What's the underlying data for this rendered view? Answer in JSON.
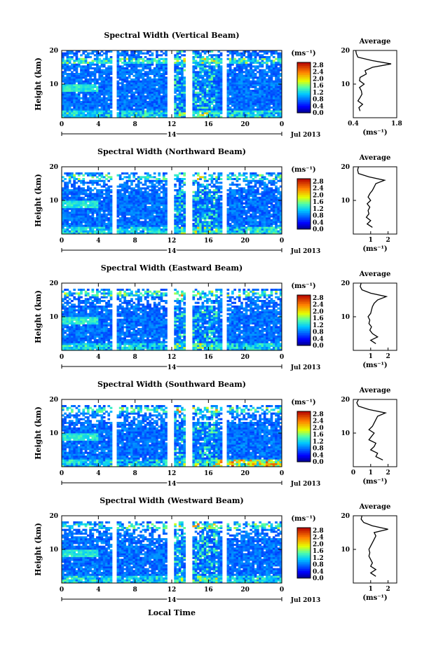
{
  "figure": {
    "xlabel_bottom": "Local Time",
    "date_label": "Jul 2013",
    "day_label": "14"
  },
  "chart_data": [
    {
      "type": "heatmap",
      "title": "Spectral Width (Vertical Beam)",
      "ylabel": "Height (km)",
      "xlabel": "Local Time",
      "x_ticks": [
        "0",
        "4",
        "8",
        "12",
        "16",
        "20",
        "0"
      ],
      "y_ticks": [
        "20",
        "10"
      ],
      "xlim": [
        0,
        24
      ],
      "ylim": [
        0,
        20
      ],
      "colorbar": {
        "unit": "(ms⁻¹)",
        "ticks": [
          "2.8",
          "2.4",
          "2.0",
          "1.6",
          "1.2",
          "0.8",
          "0.4",
          "0.0"
        ],
        "range": [
          0,
          2.8
        ]
      },
      "profile": {
        "title": "Average",
        "xlabel": "(ms⁻¹)",
        "xticks": [
          "0.4",
          "1.8"
        ],
        "xlim": [
          0.4,
          1.8
        ],
        "yticks": [
          "20",
          "10"
        ],
        "heights": [
          2,
          3,
          4,
          5,
          6,
          7,
          8,
          9,
          10,
          11,
          12,
          13,
          14,
          15,
          16,
          17,
          18,
          19,
          20
        ],
        "values": [
          0.62,
          0.58,
          0.7,
          0.55,
          0.62,
          0.68,
          0.66,
          0.6,
          0.75,
          0.6,
          0.62,
          0.82,
          0.78,
          1.02,
          1.62,
          1.0,
          0.55,
          0.5,
          0.48
        ]
      }
    },
    {
      "type": "heatmap",
      "title": "Spectral Width (Northward Beam)",
      "ylabel": "Height (km)",
      "xlabel": "Local Time",
      "x_ticks": [
        "0",
        "4",
        "8",
        "12",
        "16",
        "20",
        "0"
      ],
      "y_ticks": [
        "20",
        "10"
      ],
      "xlim": [
        0,
        24
      ],
      "ylim": [
        0,
        20
      ],
      "colorbar": {
        "unit": "(ms⁻¹)",
        "ticks": [
          "2.8",
          "2.4",
          "2.0",
          "1.6",
          "1.2",
          "0.8",
          "0.4",
          "0.0"
        ],
        "range": [
          0,
          2.8
        ]
      },
      "profile": {
        "title": "Average",
        "xlabel": "(ms⁻¹)",
        "xticks": [
          "1",
          "2"
        ],
        "xlim": [
          0,
          2.5
        ],
        "yticks": [
          "20",
          "10"
        ],
        "heights": [
          2,
          3,
          4,
          5,
          6,
          7,
          8,
          9,
          10,
          11,
          12,
          13,
          14,
          15,
          16,
          17,
          18,
          19,
          20
        ],
        "values": [
          1.1,
          0.8,
          1.0,
          0.75,
          0.9,
          0.85,
          0.95,
          0.8,
          1.0,
          0.85,
          0.95,
          1.1,
          1.2,
          1.3,
          1.8,
          0.9,
          0.3,
          0.25,
          0.3
        ]
      }
    },
    {
      "type": "heatmap",
      "title": "Spectral Width (Eastward Beam)",
      "ylabel": "Height (km)",
      "xlabel": "Local Time",
      "x_ticks": [
        "0",
        "4",
        "8",
        "12",
        "16",
        "20",
        "0"
      ],
      "y_ticks": [
        "20",
        "10"
      ],
      "xlim": [
        0,
        24
      ],
      "ylim": [
        0,
        20
      ],
      "colorbar": {
        "unit": "(ms⁻¹)",
        "ticks": [
          "2.8",
          "2.4",
          "2.0",
          "1.6",
          "1.2",
          "0.8",
          "0.4",
          "0.0"
        ],
        "range": [
          0,
          2.8
        ]
      },
      "profile": {
        "title": "Average",
        "xlabel": "(ms⁻¹)",
        "xticks": [
          "1",
          "2"
        ],
        "xlim": [
          0,
          2.5
        ],
        "yticks": [
          "20",
          "10"
        ],
        "heights": [
          2,
          3,
          4,
          5,
          6,
          7,
          8,
          9,
          10,
          11,
          12,
          13,
          14,
          15,
          16,
          17,
          18,
          19,
          20
        ],
        "values": [
          1.3,
          1.0,
          1.4,
          1.1,
          0.95,
          1.05,
          0.9,
          0.95,
          0.85,
          1.0,
          1.05,
          1.1,
          1.2,
          1.4,
          1.9,
          1.0,
          0.5,
          0.4,
          0.45
        ]
      }
    },
    {
      "type": "heatmap",
      "title": "Spectral Width (Southward Beam)",
      "ylabel": "Height (km)",
      "xlabel": "Local Time",
      "x_ticks": [
        "0",
        "4",
        "8",
        "12",
        "16",
        "20",
        "0"
      ],
      "y_ticks": [
        "20",
        "10"
      ],
      "xlim": [
        0,
        24
      ],
      "ylim": [
        0,
        20
      ],
      "colorbar": {
        "unit": "(ms⁻¹)",
        "ticks": [
          "2.8",
          "2.4",
          "2.0",
          "1.6",
          "1.2",
          "0.8",
          "0.4",
          "0.0"
        ],
        "range": [
          0,
          2.8
        ]
      },
      "profile": {
        "title": "Average",
        "xlabel": "(ms⁻¹)",
        "xticks": [
          "0",
          "1",
          "2"
        ],
        "xlim": [
          0,
          2.5
        ],
        "yticks": [
          "20",
          "10"
        ],
        "heights": [
          2,
          3,
          4,
          5,
          6,
          7,
          8,
          9,
          10,
          11,
          12,
          13,
          14,
          15,
          16,
          17,
          18,
          19,
          20
        ],
        "values": [
          1.7,
          1.3,
          1.4,
          1.0,
          1.2,
          1.3,
          0.9,
          1.05,
          1.2,
          0.9,
          1.1,
          1.2,
          1.3,
          1.4,
          1.85,
          0.9,
          0.3,
          0.2,
          0.3
        ]
      }
    },
    {
      "type": "heatmap",
      "title": "Spectral Width (Westward Beam)",
      "ylabel": "Height (km)",
      "xlabel": "Local Time",
      "x_ticks": [
        "0",
        "4",
        "8",
        "12",
        "16",
        "20",
        "0"
      ],
      "y_ticks": [
        "20",
        "10"
      ],
      "xlim": [
        0,
        24
      ],
      "ylim": [
        0,
        20
      ],
      "colorbar": {
        "unit": "(ms⁻¹)",
        "ticks": [
          "2.8",
          "2.4",
          "2.0",
          "1.6",
          "1.2",
          "0.8",
          "0.4",
          "0.0"
        ],
        "range": [
          0,
          2.8
        ]
      },
      "profile": {
        "title": "Average",
        "xlabel": "(ms⁻¹)",
        "xticks": [
          "1",
          "2"
        ],
        "xlim": [
          0,
          2.5
        ],
        "yticks": [
          "20",
          "10"
        ],
        "heights": [
          2,
          3,
          4,
          5,
          6,
          7,
          8,
          9,
          10,
          11,
          12,
          13,
          14,
          15,
          16,
          17,
          18,
          19,
          20
        ],
        "values": [
          1.3,
          1.0,
          1.3,
          1.0,
          1.1,
          1.0,
          0.9,
          0.95,
          0.9,
          1.0,
          1.1,
          1.2,
          1.3,
          1.2,
          2.0,
          1.1,
          0.6,
          0.45,
          0.5
        ]
      }
    }
  ]
}
